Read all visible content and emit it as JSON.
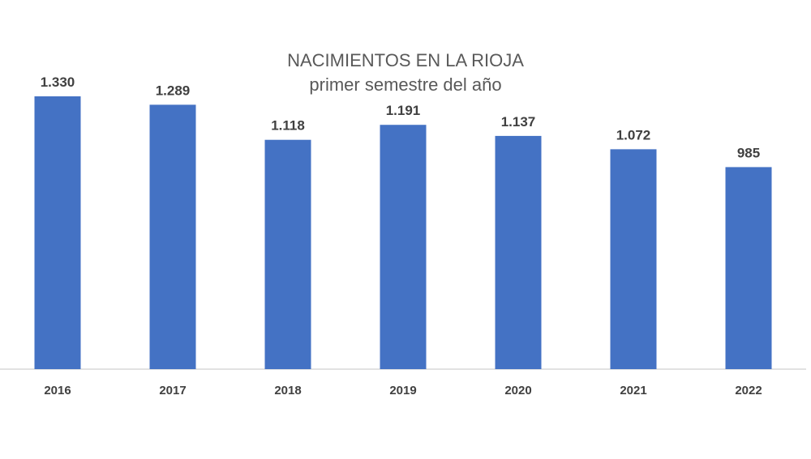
{
  "chart_data": {
    "type": "bar",
    "title": "NACIMIENTOS EN LA RIOJA",
    "subtitle": "primer semestre del año",
    "categories": [
      "2016",
      "2017",
      "2018",
      "2019",
      "2020",
      "2021",
      "2022"
    ],
    "values": [
      1330,
      1289,
      1118,
      1191,
      1137,
      1072,
      985
    ],
    "data_labels": [
      "1.330",
      "1.289",
      "1.118",
      "1.191",
      "1.137",
      "1.072",
      "985"
    ],
    "ylim": [
      0,
      1330
    ],
    "grid": false,
    "legend": "none",
    "bar_color": "#4472C4"
  }
}
